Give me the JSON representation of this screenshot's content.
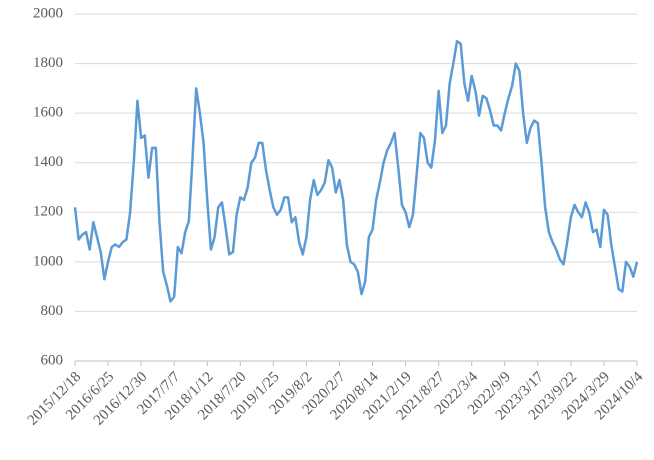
{
  "chart_data": {
    "type": "line",
    "categories": [
      "2015/12/18",
      null,
      null,
      null,
      null,
      null,
      null,
      null,
      null,
      "2016/6/25",
      null,
      null,
      null,
      null,
      null,
      null,
      null,
      null,
      "2016/12/30",
      null,
      null,
      null,
      null,
      null,
      null,
      null,
      null,
      "2017/7/7",
      null,
      null,
      null,
      null,
      null,
      null,
      null,
      null,
      "2018/1/12",
      null,
      null,
      null,
      null,
      null,
      null,
      null,
      null,
      "2018/7/20",
      null,
      null,
      null,
      null,
      null,
      null,
      null,
      null,
      "2019/1/25",
      null,
      null,
      null,
      null,
      null,
      null,
      null,
      null,
      "2019/8/2",
      null,
      null,
      null,
      null,
      null,
      null,
      null,
      null,
      "2020/2/7",
      null,
      null,
      null,
      null,
      null,
      null,
      null,
      null,
      "2020/8/14",
      null,
      null,
      null,
      null,
      null,
      null,
      null,
      null,
      "2021/2/19",
      null,
      null,
      null,
      null,
      null,
      null,
      null,
      null,
      "2021/8/27",
      null,
      null,
      null,
      null,
      null,
      null,
      null,
      null,
      "2022/3/4",
      null,
      null,
      null,
      null,
      null,
      null,
      null,
      null,
      "2022/9/9",
      null,
      null,
      null,
      null,
      null,
      null,
      null,
      null,
      "2023/3/17",
      null,
      null,
      null,
      null,
      null,
      null,
      null,
      null,
      "2023/9/22",
      null,
      null,
      null,
      null,
      null,
      null,
      null,
      null,
      "2024/3/29",
      null,
      null,
      null,
      null,
      null,
      null,
      null,
      null,
      "2024/10/4"
    ],
    "values": [
      1220,
      1090,
      1110,
      1120,
      1050,
      1160,
      1100,
      1040,
      930,
      1000,
      1060,
      1070,
      1060,
      1080,
      1090,
      1200,
      1400,
      1650,
      1500,
      1510,
      1340,
      1460,
      1460,
      1160,
      960,
      905,
      840,
      860,
      1060,
      1035,
      1120,
      1165,
      1420,
      1700,
      1600,
      1480,
      1250,
      1050,
      1100,
      1220,
      1240,
      1140,
      1030,
      1040,
      1190,
      1260,
      1250,
      1300,
      1400,
      1420,
      1480,
      1480,
      1370,
      1290,
      1220,
      1190,
      1210,
      1260,
      1260,
      1160,
      1180,
      1080,
      1030,
      1100,
      1250,
      1330,
      1270,
      1290,
      1320,
      1410,
      1380,
      1280,
      1330,
      1250,
      1070,
      1000,
      990,
      960,
      870,
      920,
      1100,
      1130,
      1250,
      1320,
      1400,
      1450,
      1480,
      1520,
      1380,
      1230,
      1200,
      1140,
      1190,
      1350,
      1520,
      1500,
      1400,
      1380,
      1490,
      1690,
      1520,
      1550,
      1720,
      1800,
      1890,
      1880,
      1720,
      1650,
      1750,
      1690,
      1590,
      1670,
      1660,
      1610,
      1550,
      1550,
      1530,
      1600,
      1660,
      1710,
      1800,
      1770,
      1600,
      1480,
      1540,
      1570,
      1560,
      1400,
      1220,
      1120,
      1080,
      1050,
      1010,
      990,
      1080,
      1180,
      1230,
      1200,
      1180,
      1240,
      1200,
      1120,
      1130,
      1060,
      1210,
      1190,
      1070,
      980,
      890,
      880,
      1000,
      980,
      940,
      1000
    ],
    "color": "#5b9bd5",
    "ylim": [
      600,
      2000
    ],
    "yticks": [
      600,
      800,
      1000,
      1200,
      1400,
      1600,
      1800,
      2000
    ],
    "grid": true
  }
}
